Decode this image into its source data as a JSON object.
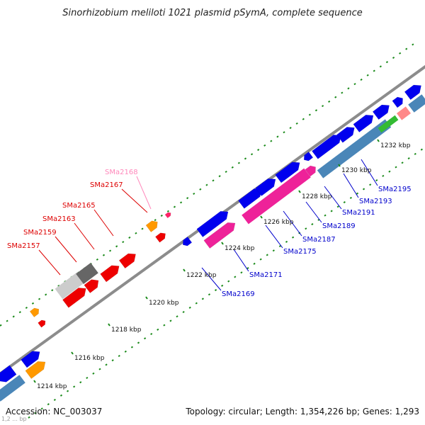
{
  "title": "Sinorhizobium meliloti 1021 plasmid pSymA, complete sequence",
  "footer": {
    "accession": "Accession: NC_003037",
    "topology": "Topology: circular; Length: 1,354,226 bp; Genes: 1,293",
    "corner_label": "1,2 ... bp"
  },
  "colors": {
    "backbone": "#8c8c8c",
    "dots": "#1a8a1a",
    "red": "#ee0000",
    "label_red": "#dd0000",
    "label_pink": "#ff88bb",
    "label_blue": "#0000cc",
    "blue": "#0000ee",
    "magenta": "#ee2299",
    "orange": "#ff9900",
    "gray_light": "#cccccc",
    "gray_dark": "#666666",
    "steel": "#4a86b8",
    "green": "#33bb33",
    "salmon": "#ff8888"
  },
  "kbp_ticks": [
    {
      "label": "1214 kbp"
    },
    {
      "label": "1216 kbp"
    },
    {
      "label": "1218 kbp"
    },
    {
      "label": "1220 kbp"
    },
    {
      "label": "1222 kbp"
    },
    {
      "label": "1224 kbp"
    },
    {
      "label": "1226 kbp"
    },
    {
      "label": "1228 kbp"
    },
    {
      "label": "1230 kbp"
    },
    {
      "label": "1232 kbp"
    }
  ],
  "gene_labels": [
    {
      "name": "SMa2157",
      "color": "label_red"
    },
    {
      "name": "SMa2159",
      "color": "label_red"
    },
    {
      "name": "SMa2163",
      "color": "label_red"
    },
    {
      "name": "SMa2165",
      "color": "label_red"
    },
    {
      "name": "SMa2167",
      "color": "label_red"
    },
    {
      "name": "SMa2168",
      "color": "label_pink"
    },
    {
      "name": "SMa2169",
      "color": "label_blue"
    },
    {
      "name": "SMa2171",
      "color": "label_blue"
    },
    {
      "name": "SMa2175",
      "color": "label_blue"
    },
    {
      "name": "SMa2187",
      "color": "label_blue"
    },
    {
      "name": "SMa2189",
      "color": "label_blue"
    },
    {
      "name": "SMa2191",
      "color": "label_blue"
    },
    {
      "name": "SMa2193",
      "color": "label_blue"
    },
    {
      "name": "SMa2195",
      "color": "label_blue"
    }
  ]
}
